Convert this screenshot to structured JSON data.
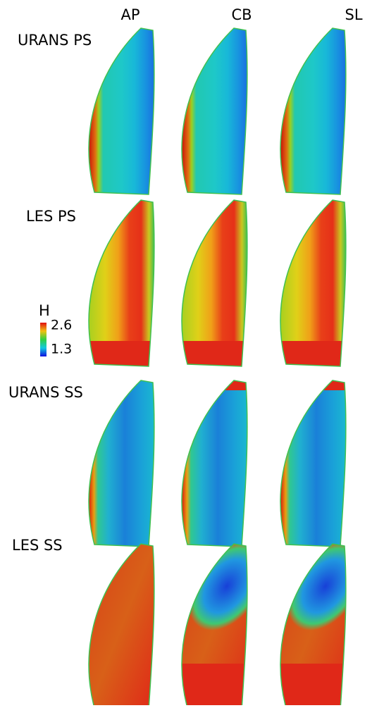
{
  "columns": [
    "AP",
    "CB",
    "SL"
  ],
  "rows": [
    "URANS PS",
    "LES PS",
    "URANS SS",
    "LES SS"
  ],
  "colorbar": {
    "label": "H",
    "ticks": [
      2.6,
      1.3
    ]
  }
}
